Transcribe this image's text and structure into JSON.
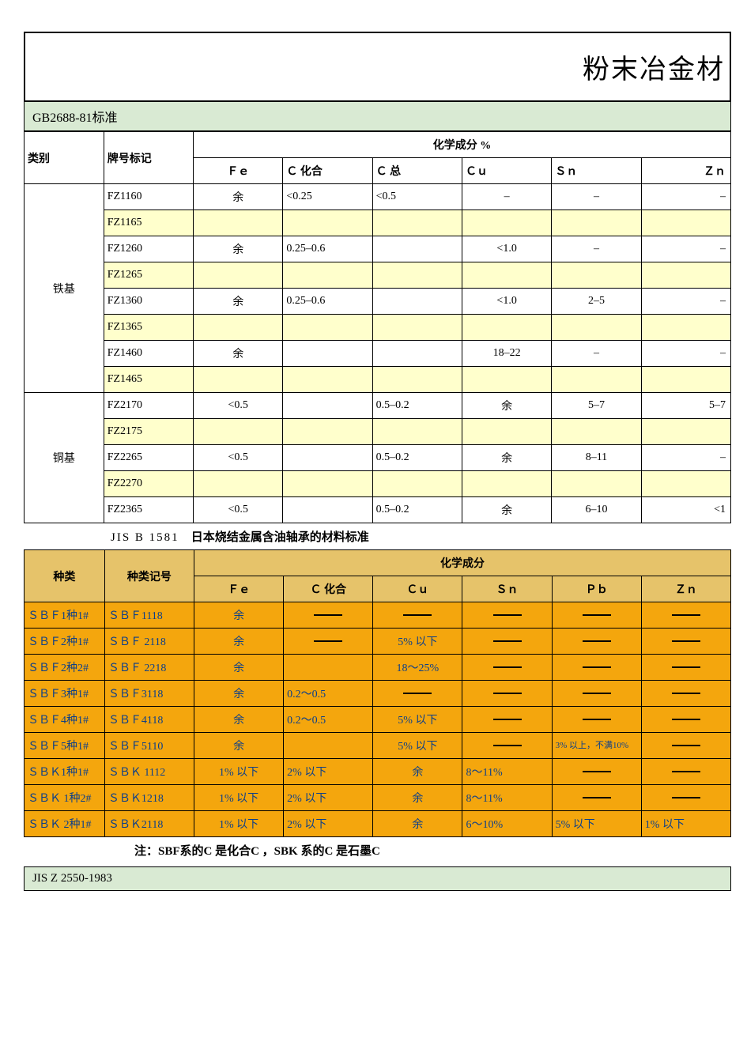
{
  "title": "粉末冶金材",
  "section1_label": "GB2688-81标准",
  "table1": {
    "headers": {
      "category": "类别",
      "mark": "牌号标记",
      "chem": "化学成分 %",
      "cols": [
        "Ｆｅ",
        "Ｃ 化合",
        "Ｃ 总",
        "Ｃｕ",
        "Ｓｎ",
        "Ｚｎ"
      ]
    },
    "groups": [
      {
        "category": "铁基",
        "rows": [
          {
            "mark": "FZ1160",
            "cells": [
              "余",
              "<0.25",
              "<0.5",
              "–",
              "–",
              "–"
            ],
            "yellow": false
          },
          {
            "mark": "FZ1165",
            "cells": [
              "",
              "",
              "",
              "",
              "",
              ""
            ],
            "yellow": true
          },
          {
            "mark": "FZ1260",
            "cells": [
              "余",
              "0.25–0.6",
              "",
              "<1.0",
              "–",
              "–"
            ],
            "yellow": false
          },
          {
            "mark": "FZ1265",
            "cells": [
              "",
              "",
              "",
              "",
              "",
              ""
            ],
            "yellow": true
          },
          {
            "mark": "FZ1360",
            "cells": [
              "余",
              "0.25–0.6",
              "",
              "<1.0",
              "2–5",
              "–"
            ],
            "yellow": false
          },
          {
            "mark": "FZ1365",
            "cells": [
              "",
              "",
              "",
              "",
              "",
              ""
            ],
            "yellow": true
          },
          {
            "mark": "FZ1460",
            "cells": [
              "余",
              "",
              "",
              "18–22",
              "–",
              "–"
            ],
            "yellow": false
          },
          {
            "mark": "FZ1465",
            "cells": [
              "",
              "",
              "",
              "",
              "",
              ""
            ],
            "yellow": true
          }
        ]
      },
      {
        "category": "铜基",
        "rows": [
          {
            "mark": "FZ2170",
            "cells": [
              "<0.5",
              "",
              "0.5–0.2",
              "余",
              "5–7",
              "5–7"
            ],
            "yellow": false
          },
          {
            "mark": "FZ2175",
            "cells": [
              "",
              "",
              "",
              "",
              "",
              ""
            ],
            "yellow": true
          },
          {
            "mark": "FZ2265",
            "cells": [
              "<0.5",
              "",
              "0.5–0.2",
              "余",
              "8–11",
              "–"
            ],
            "yellow": false
          },
          {
            "mark": "FZ2270",
            "cells": [
              "",
              "",
              "",
              "",
              "",
              ""
            ],
            "yellow": true
          },
          {
            "mark": "FZ2365",
            "cells": [
              "<0.5",
              "",
              "0.5–0.2",
              "余",
              "6–10",
              "<1"
            ],
            "yellow": false
          }
        ]
      }
    ]
  },
  "jis_title_label": "JIS B 1581",
  "jis_title_bold": "日本烧结金属含油轴承的材料标准",
  "table2": {
    "headers": {
      "kind": "种类",
      "code": "种类记号",
      "chem": "化学成分",
      "cols": [
        "Ｆｅ",
        "Ｃ 化合",
        "Ｃｕ",
        "Ｓｎ",
        "Ｐｂ",
        "Ｚｎ"
      ]
    },
    "rows": [
      {
        "kind": "ＳＢＦ1种1#",
        "code": "ＳＢＦ1118",
        "cells": [
          "余",
          "DASH",
          "DASH",
          "DASH",
          "DASH",
          "DASH"
        ]
      },
      {
        "kind": "ＳＢＦ2种1#",
        "code": "ＳＢＦ 2118",
        "cells": [
          "余",
          "DASH",
          "5% 以下",
          "DASH",
          "DASH",
          "DASH"
        ]
      },
      {
        "kind": "ＳＢＦ2种2#",
        "code": "ＳＢＦ 2218",
        "cells": [
          "余",
          "",
          "18～25%",
          "DASH",
          "DASH",
          "DASH"
        ]
      },
      {
        "kind": "ＳＢＦ3种1#",
        "code": "ＳＢＦ3118",
        "cells": [
          "余",
          "0.2～0.5",
          "DASH",
          "DASH",
          "DASH",
          "DASH"
        ]
      },
      {
        "kind": "ＳＢＦ4种1#",
        "code": "ＳＢＦ4118",
        "cells": [
          "余",
          "0.2～0.5",
          "5% 以下",
          "DASH",
          "DASH",
          "DASH"
        ]
      },
      {
        "kind": "ＳＢＦ5种1#",
        "code": "ＳＢＦ5110",
        "cells": [
          "余",
          "",
          "5% 以下",
          "DASH",
          "3% 以上，不满10%",
          "DASH"
        ]
      },
      {
        "kind": "ＳＢＫ1种1#",
        "code": "ＳＢＫ 1112",
        "cells": [
          "1% 以下",
          "2% 以下",
          "余",
          "8～11%",
          "DASH",
          "DASH"
        ]
      },
      {
        "kind": "ＳＢＫ 1种2#",
        "code": "ＳＢＫ1218",
        "cells": [
          "1% 以下",
          "2% 以下",
          "余",
          "8～11%",
          "DASH",
          "DASH"
        ]
      },
      {
        "kind": "ＳＢＫ 2种1#",
        "code": "ＳＢＫ2118",
        "cells": [
          "1% 以下",
          "2% 以下",
          "余",
          "6～10%",
          "5% 以下",
          "1% 以下"
        ]
      }
    ]
  },
  "note": "注：SBF系的C 是化合C ，SBK 系的C 是石墨C",
  "jis_z": "JIS Z 2550-1983"
}
